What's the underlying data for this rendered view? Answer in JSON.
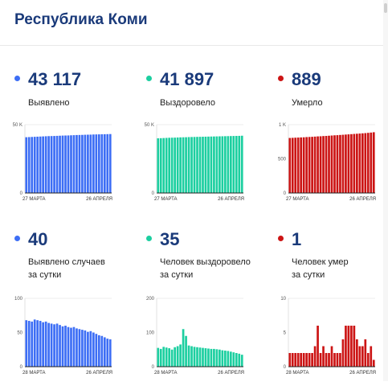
{
  "page": {
    "title": "Республика Коми"
  },
  "colors": {
    "blue": "#3d6ef5",
    "green": "#1ccfa0",
    "red": "#cc1414",
    "title": "#1a3a7a"
  },
  "cards": [
    {
      "value": "43 117",
      "label_lines": [
        "Выявлено"
      ],
      "color": "#3d6ef5",
      "chart_data": {
        "type": "bar",
        "ylim": [
          0,
          50000
        ],
        "y_ticks": [
          "50 K",
          "0"
        ],
        "x_range_labels": [
          "27 МАРТА",
          "26 АПРЕЛЯ"
        ],
        "values": [
          40800,
          40900,
          41000,
          41100,
          41200,
          41300,
          41400,
          41500,
          41600,
          41650,
          41700,
          41800,
          41900,
          42000,
          42050,
          42100,
          42200,
          42300,
          42400,
          42450,
          42500,
          42600,
          42650,
          42700,
          42800,
          42850,
          42900,
          42950,
          43000,
          43050,
          43117
        ]
      }
    },
    {
      "value": "41 897",
      "label_lines": [
        "Выздоровело"
      ],
      "color": "#1ccfa0",
      "chart_data": {
        "type": "bar",
        "ylim": [
          0,
          50000
        ],
        "y_ticks": [
          "50 K",
          "0"
        ],
        "x_range_labels": [
          "27 МАРТА",
          "26 АПРЕЛЯ"
        ],
        "values": [
          40000,
          40100,
          40200,
          40300,
          40400,
          40450,
          40500,
          40600,
          40700,
          40750,
          40800,
          40900,
          40950,
          41000,
          41050,
          41100,
          41150,
          41200,
          41250,
          41300,
          41350,
          41400,
          41450,
          41500,
          41550,
          41600,
          41650,
          41700,
          41750,
          41800,
          41897
        ]
      }
    },
    {
      "value": "889",
      "label_lines": [
        "Умерло"
      ],
      "color": "#cc1414",
      "chart_data": {
        "type": "bar",
        "ylim": [
          0,
          1000
        ],
        "y_ticks": [
          "1 K",
          "500",
          "0"
        ],
        "x_range_labels": [
          "27 МАРТА",
          "26 АПРЕЛЯ"
        ],
        "values": [
          805,
          807,
          809,
          811,
          813,
          815,
          818,
          820,
          822,
          825,
          828,
          830,
          833,
          835,
          838,
          841,
          844,
          846,
          849,
          852,
          855,
          858,
          861,
          864,
          867,
          870,
          873,
          876,
          880,
          884,
          889
        ]
      }
    },
    {
      "value": "40",
      "label_lines": [
        "Выявлено случаев",
        "за сутки"
      ],
      "color": "#3d6ef5",
      "chart_data": {
        "type": "bar",
        "ylim": [
          0,
          100
        ],
        "y_ticks": [
          "100",
          "50",
          "0"
        ],
        "x_range_labels": [
          "28 МАРТА",
          "26 АПРЕЛЯ"
        ],
        "values": [
          68,
          67,
          66,
          69,
          68,
          67,
          65,
          66,
          64,
          63,
          62,
          63,
          61,
          59,
          60,
          58,
          57,
          58,
          56,
          55,
          54,
          53,
          51,
          52,
          50,
          48,
          46,
          45,
          43,
          41,
          40
        ]
      }
    },
    {
      "value": "35",
      "label_lines": [
        "Человек выздоровело",
        "за сутки"
      ],
      "color": "#1ccfa0",
      "chart_data": {
        "type": "bar",
        "ylim": [
          0,
          200
        ],
        "y_ticks": [
          "200",
          "100",
          "0"
        ],
        "x_range_labels": [
          "28 МАРТА",
          "26 АПРЕЛЯ"
        ],
        "values": [
          55,
          52,
          58,
          56,
          54,
          50,
          57,
          60,
          65,
          110,
          90,
          62,
          60,
          58,
          57,
          56,
          55,
          54,
          53,
          52,
          52,
          51,
          50,
          48,
          47,
          46,
          44,
          42,
          40,
          38,
          35
        ]
      }
    },
    {
      "value": "1",
      "label_lines": [
        "Человек умер",
        "за сутки"
      ],
      "color": "#cc1414",
      "chart_data": {
        "type": "bar",
        "ylim": [
          0,
          10
        ],
        "y_ticks": [
          "10",
          "5",
          "0"
        ],
        "x_range_labels": [
          "28 МАРТА",
          "26 АПРЕЛЯ"
        ],
        "values": [
          2,
          2,
          2,
          2,
          2,
          2,
          2,
          2,
          2,
          3,
          6,
          2,
          3,
          2,
          2,
          3,
          2,
          2,
          2,
          4,
          6,
          6,
          6,
          6,
          4,
          3,
          3,
          4,
          2,
          3,
          1
        ]
      }
    }
  ]
}
